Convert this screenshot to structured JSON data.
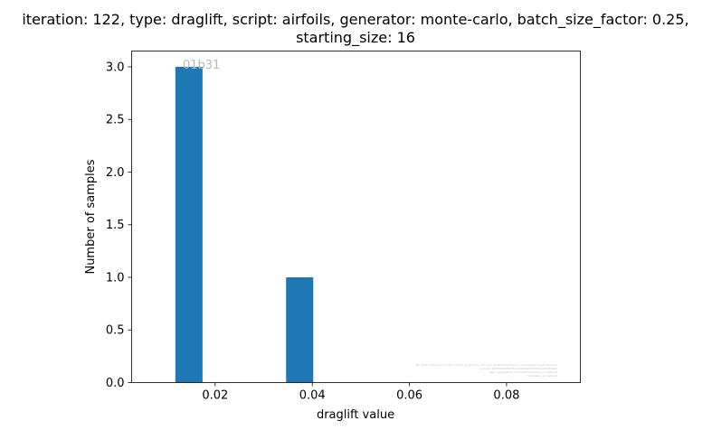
{
  "chart_data": {
    "type": "bar",
    "title_lines": [
      "iteration: 122, type: draglift, script: airfoils, generator: monte-carlo, batch_size_factor: 0.25,",
      "starting_size: 16"
    ],
    "xlabel": "draglift value",
    "ylabel": "Number of samples",
    "xlim": [
      0.0028,
      0.0952
    ],
    "ylim": [
      0,
      3.15
    ],
    "xticks": [
      0.02,
      0.04,
      0.06,
      0.08
    ],
    "xtick_labels": [
      "0.02",
      "0.04",
      "0.06",
      "0.08"
    ],
    "yticks": [
      0.0,
      0.5,
      1.0,
      1.5,
      2.0,
      2.5,
      3.0
    ],
    "ytick_labels": [
      "0.0",
      "0.5",
      "1.0",
      "1.5",
      "2.0",
      "2.5",
      "3.0"
    ],
    "bars": [
      {
        "x0": 0.0118,
        "x1": 0.0174,
        "value": 3
      },
      {
        "x0": 0.0346,
        "x1": 0.0402,
        "value": 1
      }
    ],
    "bar_color": "#1f77b4",
    "grid": false,
    "annotation": "01b31",
    "footnote_lines": [
      "By Kjetil Olsen Lye & ETHZ (kjetil.o.lye@gmail.com) and Siddhartha Mishra (mishra@sam.math.ethz.ch)",
      "Commit: 1855f60b26f1d7a1b2bae8d25f4653e3d3f65a81",
      "Repo: git@github.com/kjetil-lye/some_ml_tests.git",
      "Hostname: lo-login-03"
    ]
  }
}
